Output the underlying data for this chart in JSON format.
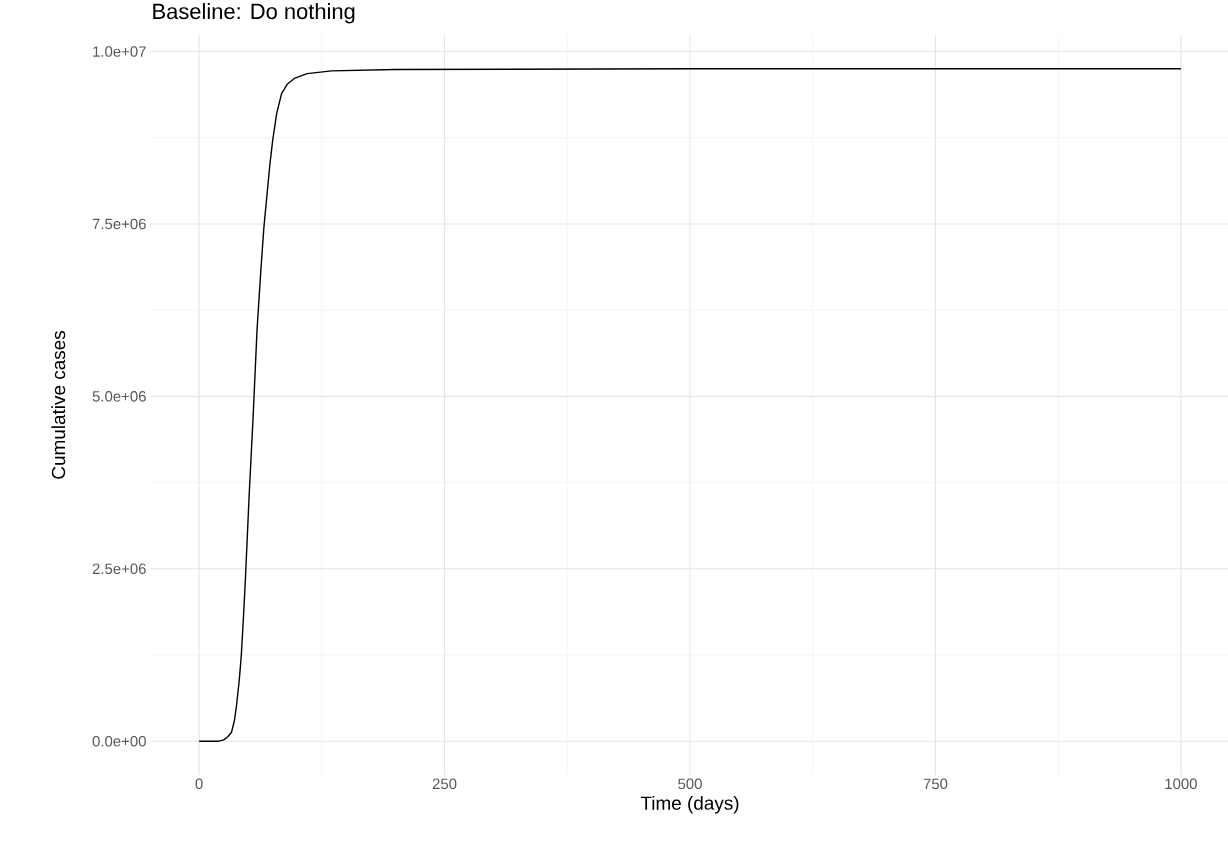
{
  "chart_data": {
    "type": "line",
    "title": "Baseline: Do nothing",
    "xlabel": "Time (days)",
    "ylabel": "Cumulative cases",
    "x": [
      0,
      20,
      25,
      29,
      33,
      36,
      38,
      41,
      43,
      45,
      47,
      51,
      55,
      59,
      63,
      66,
      69,
      72,
      75,
      79,
      84,
      90,
      97,
      110,
      135,
      200,
      500,
      1000
    ],
    "series": [
      {
        "color": "#000000",
        "values": [
          0,
          0,
          20000,
          60000,
          130000,
          300000,
          500000,
          900000,
          1250000,
          1750000,
          2300000,
          3570000,
          4700000,
          5960000,
          6850000,
          7450000,
          7900000,
          8350000,
          8720000,
          9100000,
          9390000,
          9530000,
          9610000,
          9680000,
          9720000,
          9740000,
          9750000,
          9750000
        ]
      }
    ],
    "xlim": [
      -50,
      1050
    ],
    "ylim": [
      -490000,
      10240000
    ],
    "xticks": [
      0,
      250,
      500,
      750,
      1000
    ],
    "yticks": [
      {
        "value": 0,
        "label": "0.0e+00"
      },
      {
        "value": 2500000,
        "label": "2.5e+06"
      },
      {
        "value": 5000000,
        "label": "5.0e+06"
      },
      {
        "value": 7500000,
        "label": "7.5e+06"
      },
      {
        "value": 10000000,
        "label": "1.0e+07"
      }
    ],
    "grid": true,
    "marker": "none",
    "line_style": "solid"
  }
}
